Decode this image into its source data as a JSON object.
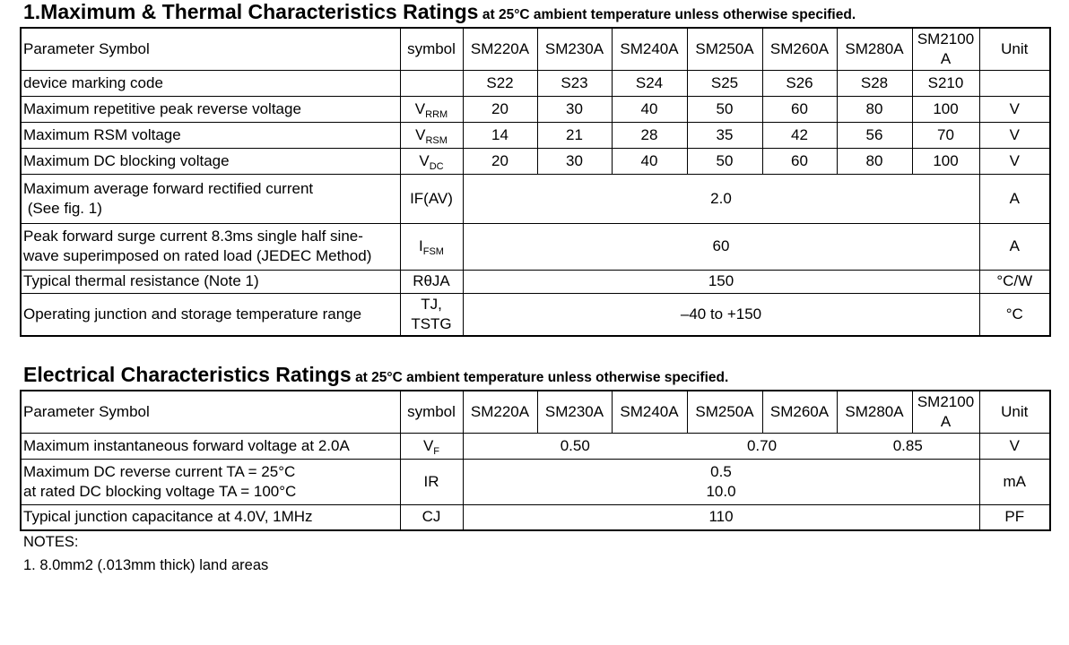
{
  "section1": {
    "title": "1.Maximum  & Thermal Characteristics Ratings",
    "subtitle": "at 25°C ambient temperature unless otherwise specified.",
    "header": [
      "Parameter Symbol",
      "symbol",
      "SM220A",
      "SM230A",
      "SM240A",
      "SM250A",
      "SM260A",
      "SM280A",
      [
        "SM2100",
        "A"
      ],
      "Unit"
    ],
    "rows": [
      {
        "parameter": "device marking code",
        "values": [
          "S22",
          "S23",
          "S24",
          "S25",
          "S26",
          "S28",
          "S210"
        ]
      },
      {
        "parameter": "Maximum repetitive peak reverse voltage",
        "symbol": {
          "main": "V",
          "sub": "RRM"
        },
        "values": [
          "20",
          "30",
          "40",
          "50",
          "60",
          "80",
          "100"
        ],
        "unit": "V"
      },
      {
        "parameter": "Maximum RSM voltage",
        "symbol": {
          "main": "V",
          "sub": "RSM"
        },
        "values": [
          "14",
          "21",
          "28",
          "35",
          "42",
          "56",
          "70"
        ],
        "unit": "V"
      },
      {
        "parameter": "Maximum DC blocking voltage",
        "symbol": {
          "main": "V",
          "sub": "DC"
        },
        "values": [
          "20",
          "30",
          "40",
          "50",
          "60",
          "80",
          "100"
        ],
        "unit": "V"
      },
      {
        "parameter": [
          "Maximum average forward rectified current",
          " (See fig. 1)"
        ],
        "symbol": "IF(AV)",
        "value": "2.0",
        "unit": "A"
      },
      {
        "parameter": [
          "Peak forward surge current 8.3ms single half sine-",
          "wave superimposed on rated load (JEDEC Method)"
        ],
        "symbol": {
          "main": "I",
          "sub": "FSM"
        },
        "value": "60",
        "unit": "A"
      },
      {
        "parameter": "Typical thermal resistance (Note 1)",
        "symbol": "RθJA",
        "value": "150",
        "unit": "°C/W"
      },
      {
        "parameter": "Operating junction and storage temperature range",
        "symbol": [
          "TJ,",
          "TSTG"
        ],
        "value": "–40 to +150",
        "unit": "°C"
      }
    ]
  },
  "section2": {
    "title": "Electrical Characteristics Ratings",
    "subtitle": "at 25°C ambient temperature unless otherwise specified.",
    "header": [
      "Parameter Symbol",
      "symbol",
      "SM220A",
      "SM230A",
      "SM240A",
      "SM250A",
      "SM260A",
      "SM280A",
      [
        "SM2100",
        "A"
      ],
      "Unit"
    ],
    "rows": [
      {
        "parameter": "Maximum instantaneous forward voltage at 2.0A",
        "symbol": {
          "main": "V",
          "sub": "F"
        },
        "groups": [
          "0.50",
          "0.70",
          "0.85"
        ],
        "unit": "V"
      },
      {
        "parameter": [
          "Maximum DC reverse current TA = 25°C",
          "at rated DC blocking voltage TA = 100°C"
        ],
        "symbol": "IR",
        "value": [
          "0.5",
          "10.0"
        ],
        "unit": "mA"
      },
      {
        "parameter": "Typical junction capacitance at 4.0V, 1MHz",
        "symbol": "CJ",
        "value": "110",
        "unit": "PF"
      }
    ]
  },
  "notes": {
    "heading": "NOTES:",
    "items": [
      "1. 8.0mm2 (.013mm thick) land areas"
    ]
  }
}
